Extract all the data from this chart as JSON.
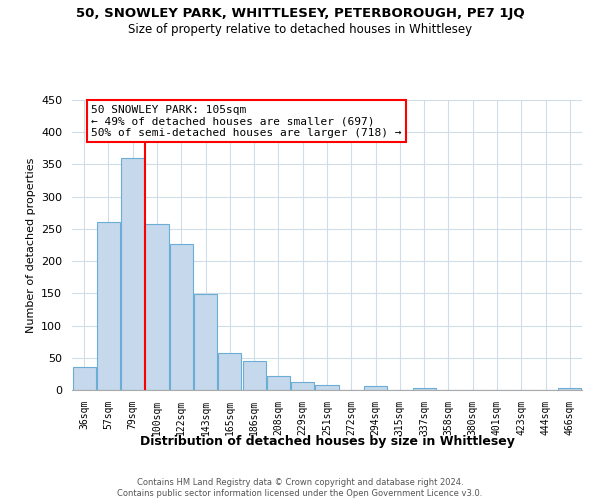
{
  "title1": "50, SNOWLEY PARK, WHITTLESEY, PETERBOROUGH, PE7 1JQ",
  "title2": "Size of property relative to detached houses in Whittlesey",
  "xlabel": "Distribution of detached houses by size in Whittlesey",
  "ylabel": "Number of detached properties",
  "bar_labels": [
    "36sqm",
    "57sqm",
    "79sqm",
    "100sqm",
    "122sqm",
    "143sqm",
    "165sqm",
    "186sqm",
    "208sqm",
    "229sqm",
    "251sqm",
    "272sqm",
    "294sqm",
    "315sqm",
    "337sqm",
    "358sqm",
    "380sqm",
    "401sqm",
    "423sqm",
    "444sqm",
    "466sqm"
  ],
  "bar_values": [
    35,
    260,
    360,
    257,
    227,
    149,
    58,
    45,
    21,
    12,
    8,
    0,
    6,
    0,
    3,
    0,
    0,
    0,
    0,
    0,
    3
  ],
  "bar_color": "#c5d8ec",
  "bar_edge_color": "#6aaed6",
  "vline_color": "red",
  "vline_x_idx": 3,
  "annotation_title": "50 SNOWLEY PARK: 105sqm",
  "annotation_line1": "← 49% of detached houses are smaller (697)",
  "annotation_line2": "50% of semi-detached houses are larger (718) →",
  "annotation_box_color": "white",
  "annotation_box_edge": "red",
  "ylim": [
    0,
    450
  ],
  "yticks": [
    0,
    50,
    100,
    150,
    200,
    250,
    300,
    350,
    400,
    450
  ],
  "footer1": "Contains HM Land Registry data © Crown copyright and database right 2024.",
  "footer2": "Contains public sector information licensed under the Open Government Licence v3.0.",
  "bg_color": "#ffffff",
  "plot_bg_color": "#ffffff",
  "grid_color": "#d0dce8"
}
